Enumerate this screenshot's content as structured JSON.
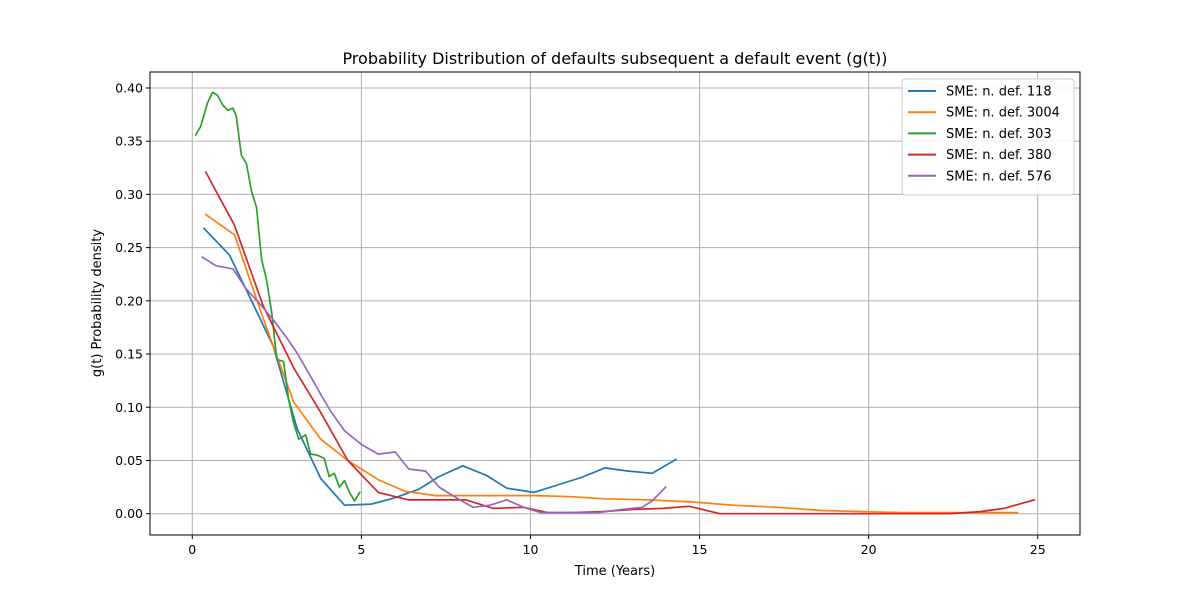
{
  "chart_data": {
    "type": "line",
    "title": "Probability Distribution of defaults subsequent a default event (g(t))",
    "xlabel": "Time (Years)",
    "ylabel": "g(t) Probability density",
    "xlim": [
      -1.25,
      26.25
    ],
    "ylim": [
      -0.02,
      0.415
    ],
    "xticks": [
      0,
      5,
      10,
      15,
      20,
      25
    ],
    "yticks": [
      0.0,
      0.05,
      0.1,
      0.15,
      0.2,
      0.25,
      0.3,
      0.35,
      0.4
    ],
    "xtick_labels": [
      "0",
      "5",
      "10",
      "15",
      "20",
      "25"
    ],
    "ytick_labels": [
      "0.00",
      "0.05",
      "0.10",
      "0.15",
      "0.20",
      "0.25",
      "0.30",
      "0.35",
      "0.40"
    ],
    "grid": true,
    "legend_position": "top-right",
    "series": [
      {
        "name": "SME: n. def. 118",
        "color": "#1f77b4",
        "x": [
          0.35,
          1.1,
          1.8,
          2.4,
          3.1,
          3.8,
          4.5,
          5.3,
          6.0,
          6.7,
          7.3,
          8.0,
          8.7,
          9.3,
          10.1,
          10.8,
          11.5,
          12.2,
          12.9,
          13.6,
          14.3
        ],
        "y": [
          0.268,
          0.243,
          0.197,
          0.157,
          0.08,
          0.033,
          0.008,
          0.009,
          0.015,
          0.023,
          0.035,
          0.045,
          0.036,
          0.024,
          0.02,
          0.027,
          0.034,
          0.043,
          0.04,
          0.038,
          0.051
        ]
      },
      {
        "name": "SME: n. def. 3004",
        "color": "#ff7f0e",
        "x": [
          0.4,
          1.25,
          2.1,
          3.0,
          3.8,
          4.6,
          5.5,
          6.3,
          7.2,
          8.0,
          9.0,
          10.2,
          11.2,
          12.2,
          13.5,
          14.8,
          16.0,
          17.3,
          18.6,
          19.8,
          21.0,
          22.2,
          23.4,
          24.4
        ],
        "y": [
          0.281,
          0.262,
          0.183,
          0.105,
          0.07,
          0.05,
          0.032,
          0.021,
          0.017,
          0.017,
          0.017,
          0.017,
          0.016,
          0.014,
          0.013,
          0.011,
          0.008,
          0.006,
          0.003,
          0.002,
          0.001,
          0.001,
          0.001,
          0.001
        ]
      },
      {
        "name": "SME: n. def. 303",
        "color": "#2ca02c",
        "x": [
          0.1,
          0.25,
          0.45,
          0.6,
          0.75,
          0.9,
          1.05,
          1.2,
          1.3,
          1.45,
          1.6,
          1.75,
          1.9,
          2.05,
          2.2,
          2.35,
          2.5,
          2.6,
          2.7,
          2.85,
          3.0,
          3.15,
          3.35,
          3.5,
          3.7,
          3.9,
          4.05,
          4.2,
          4.35,
          4.5,
          4.65,
          4.8,
          4.95
        ],
        "y": [
          0.356,
          0.364,
          0.386,
          0.396,
          0.393,
          0.384,
          0.379,
          0.381,
          0.374,
          0.337,
          0.329,
          0.303,
          0.288,
          0.239,
          0.219,
          0.189,
          0.145,
          0.144,
          0.143,
          0.107,
          0.085,
          0.07,
          0.074,
          0.056,
          0.055,
          0.052,
          0.035,
          0.038,
          0.025,
          0.031,
          0.02,
          0.012,
          0.02
        ]
      },
      {
        "name": "SME: n. def. 380",
        "color": "#d62728",
        "x": [
          0.4,
          1.25,
          2.1,
          3.0,
          3.8,
          4.6,
          5.5,
          6.4,
          7.3,
          8.1,
          8.9,
          9.8,
          10.5,
          11.2,
          12.1,
          13.0,
          13.9,
          14.7,
          15.6,
          16.5,
          17.3,
          18.2,
          19.0,
          19.9,
          20.8,
          21.6,
          22.4,
          23.3,
          24.0,
          24.9
        ],
        "y": [
          0.321,
          0.271,
          0.195,
          0.137,
          0.095,
          0.05,
          0.02,
          0.013,
          0.013,
          0.013,
          0.005,
          0.006,
          0.001,
          0.001,
          0.002,
          0.004,
          0.005,
          0.007,
          0.0,
          0.0,
          0.0,
          0.0,
          0.0,
          0.0,
          0.0,
          0.0,
          0.0,
          0.002,
          0.005,
          0.013
        ]
      },
      {
        "name": "SME: n. def. 576",
        "color": "#9467bd",
        "x": [
          0.3,
          0.7,
          1.2,
          1.6,
          2.0,
          2.4,
          2.8,
          3.1,
          3.5,
          3.8,
          4.1,
          4.5,
          5.0,
          5.5,
          6.0,
          6.4,
          6.9,
          7.3,
          7.8,
          8.3,
          8.8,
          9.3,
          9.8,
          10.3,
          10.8,
          11.3,
          12.0,
          12.7,
          13.3,
          13.6,
          14.0
        ],
        "y": [
          0.241,
          0.233,
          0.23,
          0.211,
          0.197,
          0.182,
          0.165,
          0.151,
          0.129,
          0.112,
          0.096,
          0.078,
          0.065,
          0.056,
          0.058,
          0.042,
          0.04,
          0.025,
          0.015,
          0.006,
          0.008,
          0.013,
          0.006,
          0.001,
          0.001,
          0.001,
          0.001,
          0.004,
          0.006,
          0.012,
          0.025
        ]
      }
    ]
  }
}
